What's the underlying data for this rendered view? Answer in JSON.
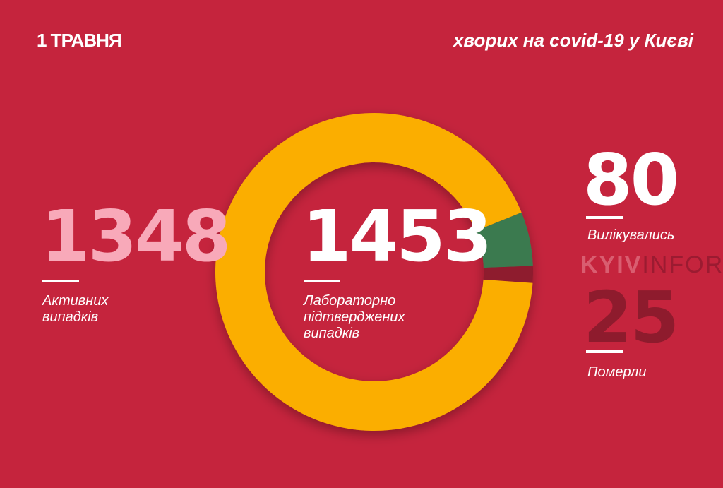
{
  "header": {
    "date": "1 ТРАВНЯ",
    "title": "хворих на covid-19 у Києві"
  },
  "chart_data": {
    "type": "pie",
    "donut": true,
    "total": 1453,
    "total_label": "Лабораторно підтверджених випадків",
    "slices": [
      {
        "name": "Активних випадків",
        "value": 1348,
        "color": "#fbae00"
      },
      {
        "name": "Вилікувались",
        "value": 80,
        "color": "#3b7a4f"
      },
      {
        "name": "Померли",
        "value": 25,
        "color": "#8e1b2d"
      }
    ]
  },
  "stats": {
    "active": {
      "value": "1348",
      "label": "Активних випадків",
      "color": "#f8a9b9"
    },
    "total": {
      "value": "1453",
      "label_lines": [
        "Лабораторно",
        "підтверджених",
        "випадків"
      ]
    },
    "recovered": {
      "value": "80",
      "label": "Вилікувались"
    },
    "deaths": {
      "value": "25",
      "label": "Померли",
      "color": "#8e1b2d"
    }
  },
  "watermark": {
    "part1": "KYIV",
    "part2": "INFORM"
  }
}
